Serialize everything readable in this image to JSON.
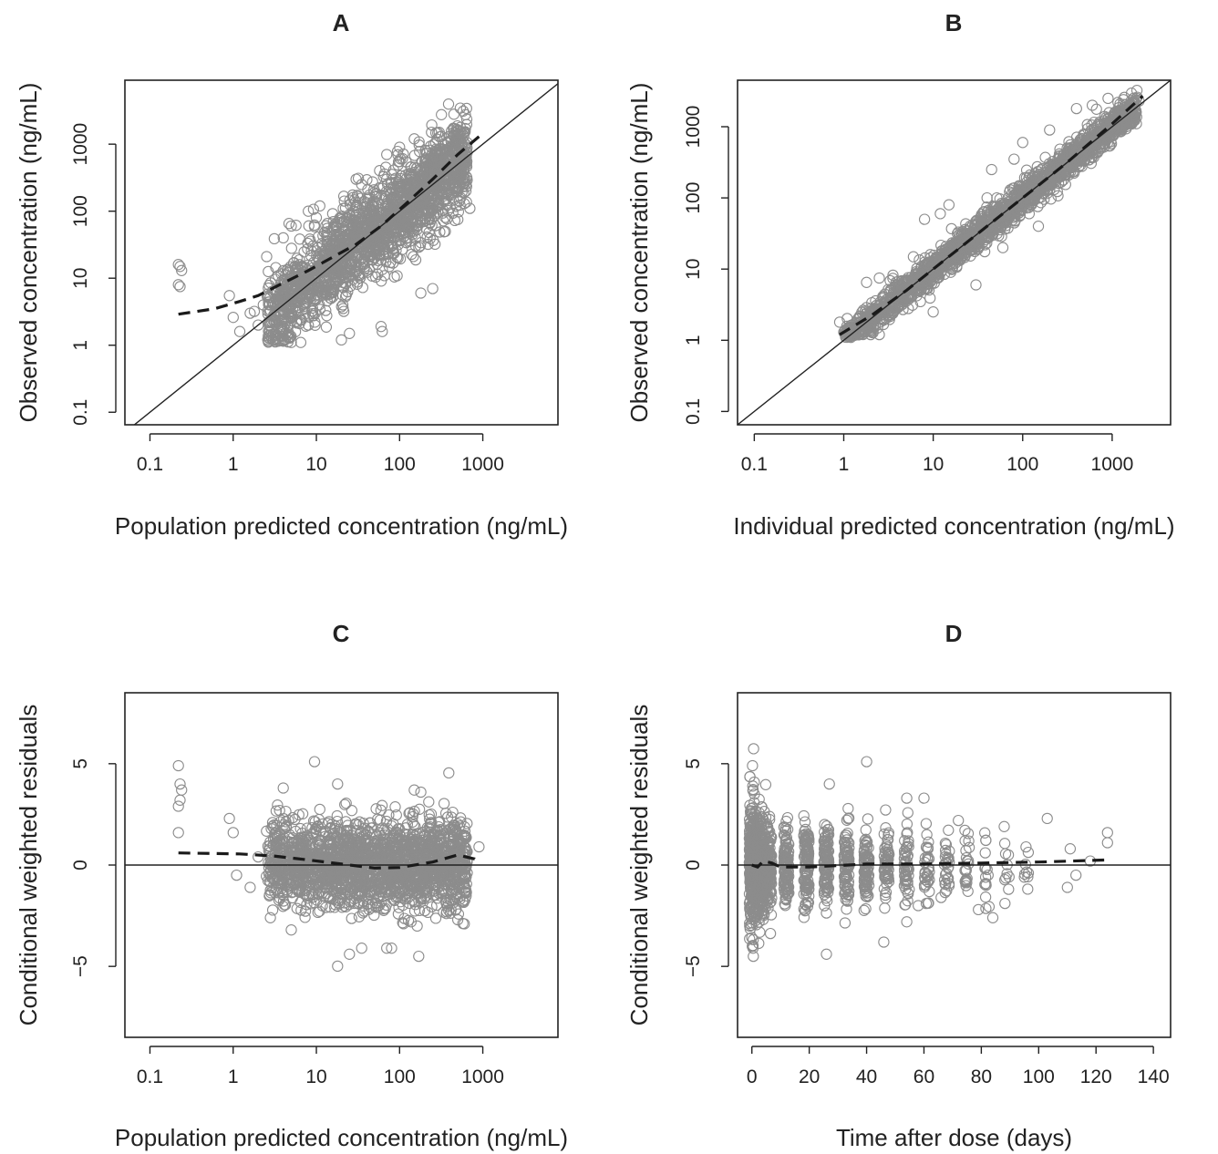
{
  "chart_data": [
    {
      "id": "A",
      "type": "scatter",
      "title": "A",
      "xlabel": "Population predicted concentration (ng/mL)",
      "ylabel": "Observed concentration (ng/mL)",
      "x_scale": "log",
      "y_scale": "log",
      "xlim": [
        0.05,
        8000
      ],
      "ylim": [
        0.065,
        9000
      ],
      "xticks": [
        0.1,
        1,
        10,
        100,
        1000
      ],
      "xtick_labels": [
        "0.1",
        "1",
        "10",
        "100",
        "1000"
      ],
      "yticks": [
        0.1,
        1,
        10,
        100,
        1000
      ],
      "ytick_labels": [
        "0.1",
        "1",
        "10",
        "100",
        "1000"
      ],
      "reference_line": "identity",
      "point_color": "#8c8c8c",
      "smooth_color": "#1a1a1a",
      "points": [
        [
          0.22,
          16
        ],
        [
          0.23,
          15
        ],
        [
          0.24,
          13
        ],
        [
          0.22,
          8
        ],
        [
          0.23,
          7.5
        ],
        [
          0.9,
          5.5
        ],
        [
          1.0,
          2.6
        ],
        [
          1.2,
          1.6
        ],
        [
          1.6,
          3.0
        ],
        [
          1.8,
          3.2
        ],
        [
          2.0,
          2.0
        ],
        [
          2.3,
          4.0
        ],
        [
          3.0,
          1.2
        ],
        [
          4.0,
          1.15
        ],
        [
          5.0,
          1.1
        ],
        [
          6.5,
          1.1
        ],
        [
          8,
          2.0
        ],
        [
          10,
          80
        ],
        [
          11,
          120
        ],
        [
          30,
          300
        ],
        [
          32,
          310
        ],
        [
          35,
          250
        ],
        [
          60,
          1.9
        ],
        [
          62,
          1.6
        ],
        [
          70,
          700
        ],
        [
          100,
          900
        ],
        [
          150,
          1200
        ],
        [
          180,
          6.0
        ],
        [
          250,
          7.0
        ],
        [
          300,
          1500
        ],
        [
          450,
          2800
        ],
        [
          500,
          1600
        ],
        [
          700,
          110
        ],
        [
          600,
          130
        ],
        [
          20,
          1.2
        ],
        [
          25,
          1.5
        ],
        [
          8,
          100
        ],
        [
          5,
          60
        ],
        [
          4,
          40
        ]
      ],
      "cloud": {
        "n": 2000,
        "x_range": [
          2.5,
          650
        ],
        "y_center_ratio": 1.05,
        "y_spread_log10": 0.33
      },
      "smooth": [
        [
          0.22,
          2.9
        ],
        [
          0.6,
          3.5
        ],
        [
          1.2,
          4.5
        ],
        [
          2,
          5.5
        ],
        [
          4,
          8.5
        ],
        [
          8,
          13
        ],
        [
          15,
          20
        ],
        [
          30,
          32
        ],
        [
          60,
          60
        ],
        [
          120,
          130
        ],
        [
          250,
          300
        ],
        [
          500,
          700
        ],
        [
          900,
          1300
        ]
      ]
    },
    {
      "id": "B",
      "type": "scatter",
      "title": "B",
      "xlabel": "Individual predicted concentration (ng/mL)",
      "ylabel": "Observed concentration (ng/mL)",
      "x_scale": "log",
      "y_scale": "log",
      "xlim": [
        0.065,
        4500
      ],
      "ylim": [
        0.065,
        4500
      ],
      "xticks": [
        0.1,
        1,
        10,
        100,
        1000
      ],
      "xtick_labels": [
        "0.1",
        "1",
        "10",
        "100",
        "1000"
      ],
      "yticks": [
        0.1,
        1,
        10,
        100,
        1000
      ],
      "ytick_labels": [
        "0.1",
        "1",
        "10",
        "100",
        "1000"
      ],
      "reference_line": "identity",
      "point_color": "#8c8c8c",
      "smooth_color": "#1a1a1a",
      "points": [
        [
          0.9,
          1.8
        ],
        [
          1.0,
          1.3
        ],
        [
          1.2,
          1.1
        ],
        [
          2.0,
          1.2
        ],
        [
          2.5,
          1.2
        ],
        [
          1.8,
          6.5
        ],
        [
          2.5,
          7.5
        ],
        [
          8,
          50
        ],
        [
          12,
          60
        ],
        [
          15,
          80
        ],
        [
          40,
          100
        ],
        [
          45,
          250
        ],
        [
          80,
          350
        ],
        [
          100,
          600
        ],
        [
          200,
          900
        ],
        [
          400,
          1800
        ],
        [
          600,
          2000
        ],
        [
          900,
          2500
        ],
        [
          1900,
          2600
        ],
        [
          2000,
          2300
        ],
        [
          150,
          40
        ],
        [
          60,
          20
        ],
        [
          30,
          6
        ],
        [
          10,
          2.5
        ]
      ],
      "cloud": {
        "n": 2000,
        "x_range": [
          1.0,
          1900
        ],
        "y_center_ratio": 1.0,
        "y_spread_log10": 0.11
      },
      "smooth": [
        [
          0.9,
          1.2
        ],
        [
          2,
          2.2
        ],
        [
          5,
          5
        ],
        [
          10,
          10
        ],
        [
          30,
          30
        ],
        [
          100,
          100
        ],
        [
          300,
          300
        ],
        [
          1000,
          1100
        ],
        [
          2200,
          2700
        ]
      ]
    },
    {
      "id": "C",
      "type": "scatter",
      "title": "C",
      "xlabel": "Population predicted concentration (ng/mL)",
      "ylabel": "Conditional weighted residuals",
      "x_scale": "log",
      "y_scale": "linear",
      "xlim": [
        0.05,
        8000
      ],
      "ylim": [
        -8.5,
        8.5
      ],
      "xticks": [
        0.1,
        1,
        10,
        100,
        1000
      ],
      "xtick_labels": [
        "0.1",
        "1",
        "10",
        "100",
        "1000"
      ],
      "yticks": [
        -5,
        0,
        5
      ],
      "ytick_labels": [
        "−5",
        "0",
        "5"
      ],
      "reference_line": "zero",
      "point_color": "#8c8c8c",
      "smooth_color": "#1a1a1a",
      "points": [
        [
          0.22,
          4.9
        ],
        [
          0.23,
          4.0
        ],
        [
          0.24,
          3.7
        ],
        [
          0.23,
          3.2
        ],
        [
          0.22,
          2.9
        ],
        [
          0.22,
          1.6
        ],
        [
          0.9,
          2.3
        ],
        [
          1.0,
          1.6
        ],
        [
          1.1,
          -0.5
        ],
        [
          1.6,
          -1.1
        ],
        [
          2.0,
          0.4
        ],
        [
          2.8,
          -2.6
        ],
        [
          9.5,
          5.1
        ],
        [
          18,
          4.0
        ],
        [
          25,
          -4.4
        ],
        [
          35,
          -4.1
        ],
        [
          70,
          -4.1
        ],
        [
          80,
          -4.1
        ],
        [
          170,
          -4.5
        ],
        [
          180,
          3.6
        ],
        [
          150,
          3.7
        ],
        [
          500,
          -2.7
        ],
        [
          600,
          -2.9
        ],
        [
          900,
          0.9
        ],
        [
          4,
          3.8
        ],
        [
          5,
          -3.2
        ]
      ],
      "cloud": {
        "n": 2000,
        "x_range": [
          2.5,
          650
        ],
        "y_center": 0.05,
        "y_sd": 1.05
      },
      "smooth": [
        [
          0.22,
          0.6
        ],
        [
          1.2,
          0.55
        ],
        [
          3,
          0.45
        ],
        [
          8,
          0.25
        ],
        [
          20,
          0.05
        ],
        [
          50,
          -0.15
        ],
        [
          100,
          -0.12
        ],
        [
          250,
          0.15
        ],
        [
          500,
          0.5
        ],
        [
          800,
          0.3
        ],
        [
          900,
          0.1
        ]
      ]
    },
    {
      "id": "D",
      "type": "scatter",
      "title": "D",
      "xlabel": "Time after dose (days)",
      "ylabel": "Conditional weighted residuals",
      "x_scale": "linear",
      "y_scale": "linear",
      "xlim": [
        -5,
        146
      ],
      "ylim": [
        -8.5,
        8.5
      ],
      "xticks": [
        0,
        20,
        40,
        60,
        80,
        100,
        120,
        140
      ],
      "xtick_labels": [
        "0",
        "20",
        "40",
        "60",
        "80",
        "100",
        "120",
        "140"
      ],
      "yticks": [
        -5,
        0,
        5
      ],
      "ytick_labels": [
        "−5",
        "0",
        "5"
      ],
      "reference_line": "zero",
      "point_color": "#8c8c8c",
      "smooth_color": "#1a1a1a",
      "points": [
        [
          0.2,
          4.9
        ],
        [
          0.3,
          3.9
        ],
        [
          0.5,
          -4.5
        ],
        [
          0.4,
          -4.1
        ],
        [
          27,
          4.0
        ],
        [
          40,
          5.1
        ],
        [
          26,
          -4.4
        ],
        [
          46,
          -3.8
        ],
        [
          54,
          -2.8
        ],
        [
          54,
          3.3
        ],
        [
          84,
          -2.6
        ],
        [
          103,
          2.3
        ],
        [
          110,
          -1.1
        ],
        [
          111,
          0.8
        ],
        [
          113,
          -0.5
        ],
        [
          124,
          1.6
        ],
        [
          124,
          1.1
        ],
        [
          118,
          0.2
        ],
        [
          95,
          -0.6
        ],
        [
          88,
          1.9
        ],
        [
          79,
          -2.2
        ],
        [
          72,
          2.2
        ],
        [
          66,
          -1.6
        ],
        [
          60,
          3.3
        ],
        [
          58,
          -2.0
        ]
      ],
      "cloud_columns": [
        [
          0,
          300,
          1.5
        ],
        [
          2,
          200,
          1.3
        ],
        [
          4,
          140,
          1.2
        ],
        [
          6,
          100,
          1.1
        ],
        [
          12,
          110,
          1.0
        ],
        [
          19,
          110,
          1.0
        ],
        [
          26,
          100,
          1.0
        ],
        [
          33,
          90,
          1.0
        ],
        [
          40,
          80,
          1.0
        ],
        [
          47,
          60,
          1.0
        ],
        [
          54,
          50,
          1.0
        ],
        [
          61,
          35,
          0.9
        ],
        [
          68,
          30,
          0.9
        ],
        [
          75,
          22,
          0.9
        ],
        [
          82,
          15,
          0.9
        ],
        [
          89,
          10,
          0.9
        ],
        [
          96,
          8,
          0.9
        ]
      ],
      "smooth": [
        [
          0,
          0.0
        ],
        [
          2,
          -0.1
        ],
        [
          4,
          0.2
        ],
        [
          7,
          0.1
        ],
        [
          10,
          -0.1
        ],
        [
          20,
          -0.1
        ],
        [
          40,
          0.05
        ],
        [
          60,
          0.05
        ],
        [
          80,
          0.1
        ],
        [
          100,
          0.15
        ],
        [
          124,
          0.25
        ]
      ]
    }
  ]
}
